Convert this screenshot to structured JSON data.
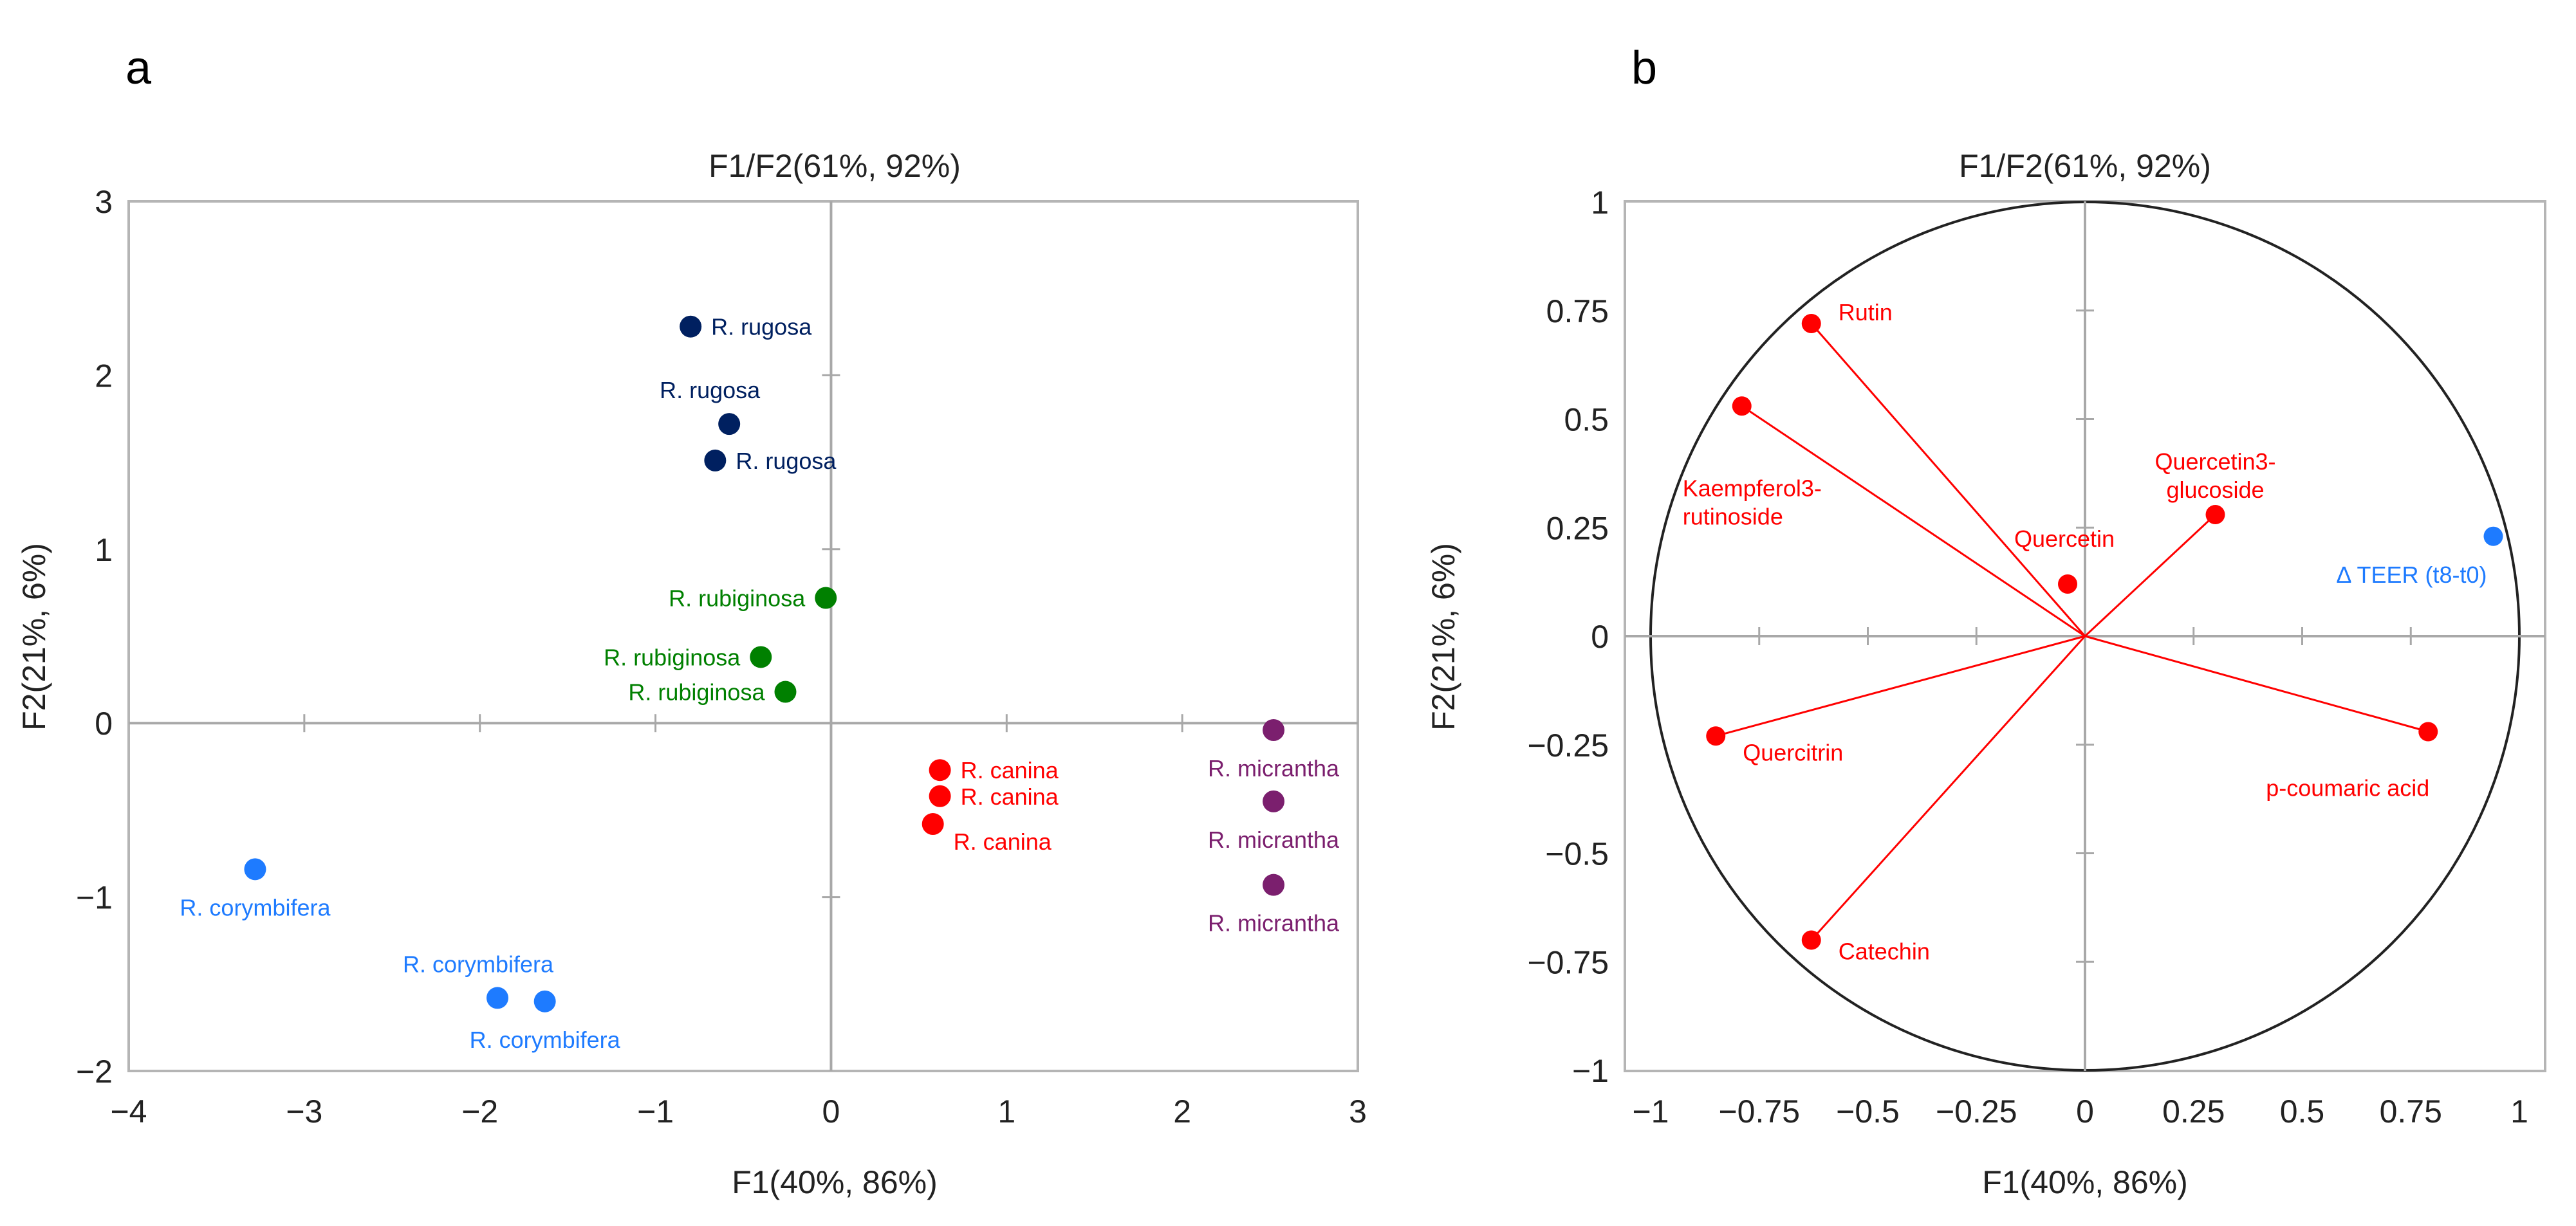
{
  "colors": {
    "rugosa": "#002060",
    "rubiginosa": "#008000",
    "canina": "#ff0000",
    "micrantha": "#7b1f6e",
    "corymbifera": "#1e7bff",
    "variable": "#ff0000",
    "supplementary": "#1e7bff"
  },
  "chart_data": [
    {
      "type": "scatter",
      "panel": "a",
      "title": "F1/F2(61%, 92%)",
      "xlabel": "F1(40%, 86%)",
      "ylabel": "F2(21%, 6%)",
      "xlim": [
        -4,
        3
      ],
      "ylim": [
        -2,
        3
      ],
      "xticks": [
        "−4",
        "−3",
        "−2",
        "−1",
        "0",
        "1",
        "2",
        "3"
      ],
      "yticks": [
        "3",
        "2",
        "1",
        "0",
        "−1",
        "−2"
      ],
      "points": [
        {
          "label": "R. rugosa",
          "group": "rugosa",
          "x": -0.8,
          "y": 2.28,
          "anchor": "right"
        },
        {
          "label": "R. rugosa",
          "group": "rugosa",
          "x": -0.58,
          "y": 1.72,
          "anchor": "above"
        },
        {
          "label": "R. rugosa",
          "group": "rugosa",
          "x": -0.66,
          "y": 1.51,
          "anchor": "right"
        },
        {
          "label": "R. rubiginosa",
          "group": "rubiginosa",
          "x": -0.03,
          "y": 0.72,
          "anchor": "left"
        },
        {
          "label": "R. rubiginosa",
          "group": "rubiginosa",
          "x": -0.4,
          "y": 0.38,
          "anchor": "left"
        },
        {
          "label": "R. rubiginosa",
          "group": "rubiginosa",
          "x": -0.26,
          "y": 0.18,
          "anchor": "left"
        },
        {
          "label": "R. canina",
          "group": "canina",
          "x": 0.62,
          "y": -0.27,
          "anchor": "right"
        },
        {
          "label": "R. canina",
          "group": "canina",
          "x": 0.62,
          "y": -0.42,
          "anchor": "right"
        },
        {
          "label": "R. canina",
          "group": "canina",
          "x": 0.58,
          "y": -0.58,
          "anchor": "right-below"
        },
        {
          "label": "R. micrantha",
          "group": "micrantha",
          "x": 2.52,
          "y": -0.04,
          "anchor": "below"
        },
        {
          "label": "R. micrantha",
          "group": "micrantha",
          "x": 2.52,
          "y": -0.45,
          "anchor": "below"
        },
        {
          "label": "R. micrantha",
          "group": "micrantha",
          "x": 2.52,
          "y": -0.93,
          "anchor": "below"
        },
        {
          "label": "R. corymbifera",
          "group": "corymbifera",
          "x": -3.28,
          "y": -0.84,
          "anchor": "below"
        },
        {
          "label": "R. corymbifera",
          "group": "corymbifera",
          "x": -1.9,
          "y": -1.58,
          "anchor": "above"
        },
        {
          "label": "R. corymbifera",
          "group": "corymbifera",
          "x": -1.63,
          "y": -1.6,
          "anchor": "below"
        }
      ]
    },
    {
      "type": "scatter",
      "panel": "b",
      "subtype": "correlation-circle",
      "title": "F1/F2(61%, 92%)",
      "xlabel": "F1(40%, 86%)",
      "ylabel": "F2(21%, 6%)",
      "xlim": [
        -1,
        1
      ],
      "ylim": [
        -1,
        1
      ],
      "xticks": [
        "−1",
        "−0.75",
        "−0.5",
        "−0.25",
        "0",
        "0.25",
        "0.5",
        "0.75",
        "1"
      ],
      "yticks": [
        "1",
        "0.75",
        "0.5",
        "0.25",
        "0",
        "−0.25",
        "−0.5",
        "−0.75",
        "−1"
      ],
      "variables": [
        {
          "label": "Rutin",
          "x": -0.63,
          "y": 0.72,
          "vector": true
        },
        {
          "label": "Kaempferol3-\nrutinoside",
          "x": -0.79,
          "y": 0.53,
          "vector": true
        },
        {
          "label": "Quercetin3-\nglucoside",
          "x": 0.3,
          "y": 0.28,
          "vector": true
        },
        {
          "label": "Quercetin",
          "x": -0.04,
          "y": 0.12,
          "vector": false
        },
        {
          "label": "Quercitrin",
          "x": -0.85,
          "y": -0.23,
          "vector": true
        },
        {
          "label": "p-coumaric acid",
          "x": 0.79,
          "y": -0.22,
          "vector": true
        },
        {
          "label": "Catechin",
          "x": -0.63,
          "y": -0.7,
          "vector": true
        }
      ],
      "supplementary": [
        {
          "label": "Δ TEER (t8-t0)",
          "x": 0.94,
          "y": 0.23
        }
      ]
    }
  ]
}
